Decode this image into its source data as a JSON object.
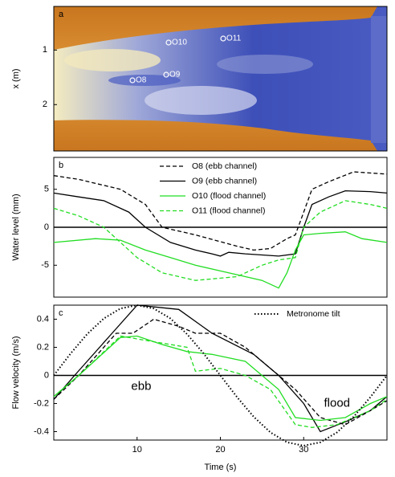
{
  "chart_data": [
    {
      "type": "image",
      "title": "a",
      "ylabel": "x (m)",
      "ylim": [
        0.2,
        2.85
      ],
      "yticks": [
        1,
        2
      ],
      "labels": [
        "O8",
        "O9",
        "O10",
        "O11"
      ]
    },
    {
      "type": "line",
      "title": "b",
      "ylabel": "Water level (mm)",
      "xlim": [
        0,
        40
      ],
      "ylim": [
        -9.2,
        9.2
      ],
      "yticks": [
        5,
        0,
        -5
      ],
      "hline": 0,
      "legend": "upper center",
      "series": [
        {
          "name": "O8 (ebb channel)",
          "color": "#000000",
          "dash": "dashed",
          "x": [
            0,
            3,
            8,
            11,
            13,
            17,
            22,
            24,
            26,
            28,
            29,
            30,
            31,
            33,
            36,
            40
          ],
          "values": [
            6.8,
            6.3,
            5,
            3,
            0,
            -1,
            -2.5,
            -3,
            -2.8,
            -1.5,
            -1,
            2,
            5,
            6,
            7.3,
            7
          ]
        },
        {
          "name": "O9 (ebb channel)",
          "color": "#000000",
          "dash": "solid",
          "x": [
            0,
            3,
            6,
            9,
            11,
            14,
            17,
            19,
            20,
            21,
            23,
            27,
            29,
            30,
            31,
            33,
            35,
            38,
            40
          ],
          "values": [
            4.5,
            4,
            3.5,
            2,
            0,
            -2,
            -3,
            -3.5,
            -3.8,
            -3.3,
            -3.5,
            -3.8,
            -3.5,
            0,
            3,
            4,
            4.8,
            4.7,
            4.5
          ]
        },
        {
          "name": "O10 (flood channel)",
          "color": "#22dd22",
          "dash": "solid",
          "x": [
            0,
            5,
            8,
            11,
            14,
            17,
            21,
            25,
            27,
            28,
            29,
            30,
            32,
            35,
            37,
            40
          ],
          "values": [
            -2,
            -1.5,
            -1.7,
            -3,
            -4,
            -5,
            -6,
            -7,
            -8,
            -6,
            -3,
            -1,
            -0.8,
            -0.6,
            -1.5,
            -2
          ]
        },
        {
          "name": "O11 (flood channel)",
          "color": "#22dd22",
          "dash": "dashed",
          "x": [
            0,
            3,
            6,
            10,
            13,
            17,
            22,
            25,
            27,
            29,
            30,
            32,
            35,
            38,
            40
          ],
          "values": [
            2.5,
            1.5,
            0,
            -4,
            -6,
            -7,
            -6.5,
            -5,
            -4.3,
            -4,
            0,
            2,
            3.5,
            3,
            2.5
          ]
        }
      ]
    },
    {
      "type": "line",
      "title": "c",
      "ylabel": "Flow velocity (m/s)",
      "xlabel": "Time (s)",
      "xlim": [
        0,
        40
      ],
      "xticks": [
        10,
        20,
        30
      ],
      "ylim": [
        -0.46,
        0.5
      ],
      "yticks": [
        0.4,
        0.2,
        0,
        -0.2,
        -0.4
      ],
      "hline": 0,
      "legend": "upper right",
      "annotations": [
        {
          "text": "ebb",
          "x": 10.5,
          "y": -0.08
        },
        {
          "text": "flood",
          "x": 34,
          "y": -0.2
        }
      ],
      "series": [
        {
          "color": "#000000",
          "dash": "dashed",
          "x": [
            0,
            3,
            7.5,
            9.5,
            12,
            15,
            17,
            20,
            23,
            26,
            29,
            32,
            35,
            38,
            40
          ],
          "values": [
            -0.17,
            0,
            0.3,
            0.3,
            0.4,
            0.35,
            0.3,
            0.3,
            0.2,
            0.05,
            -0.1,
            -0.3,
            -0.35,
            -0.25,
            -0.18
          ]
        },
        {
          "color": "#000000",
          "dash": "solid",
          "x": [
            0,
            2.5,
            7,
            10,
            15,
            19,
            24,
            27,
            30,
            32,
            35,
            38,
            40
          ],
          "values": [
            -0.17,
            0,
            0.3,
            0.5,
            0.47,
            0.3,
            0.15,
            0,
            -0.2,
            -0.4,
            -0.33,
            -0.25,
            -0.15
          ]
        },
        {
          "color": "#22dd22",
          "dash": "solid",
          "x": [
            0,
            3,
            8,
            10,
            13,
            16,
            19,
            23,
            27,
            29,
            32,
            35,
            38,
            40
          ],
          "values": [
            -0.15,
            0,
            0.27,
            0.28,
            0.22,
            0.17,
            0.15,
            0.1,
            -0.1,
            -0.3,
            -0.32,
            -0.3,
            -0.2,
            -0.15
          ]
        },
        {
          "color": "#22dd22",
          "dash": "dashed",
          "x": [
            0,
            3,
            8,
            11,
            14,
            16,
            17,
            20,
            23,
            26,
            29,
            31,
            34,
            38,
            40
          ],
          "values": [
            -0.15,
            0,
            0.28,
            0.25,
            0.22,
            0.2,
            0.03,
            0.05,
            0,
            -0.1,
            -0.35,
            -0.37,
            -0.35,
            -0.25,
            -0.17
          ]
        },
        {
          "name": "Metronome tilt",
          "color": "#000000",
          "dash": "dotted",
          "x": [
            0,
            2,
            4,
            6,
            8,
            10,
            12,
            14,
            16,
            18,
            20,
            22,
            24,
            26,
            28,
            30,
            32,
            34,
            36,
            38,
            40
          ],
          "values": [
            0,
            0.155,
            0.294,
            0.405,
            0.476,
            0.5,
            0.476,
            0.405,
            0.294,
            0.155,
            0,
            -0.155,
            -0.294,
            -0.405,
            -0.476,
            -0.5,
            -0.476,
            -0.405,
            -0.294,
            -0.155,
            0
          ]
        }
      ]
    }
  ]
}
